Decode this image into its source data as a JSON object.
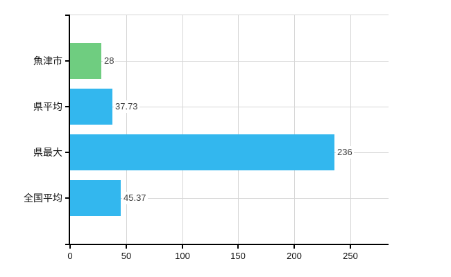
{
  "chart_data": {
    "type": "bar",
    "orientation": "horizontal",
    "title": "",
    "categories": [
      "魚津市",
      "県平均",
      "県最大",
      "全国平均"
    ],
    "values": [
      28,
      37.73,
      236,
      45.37
    ],
    "value_labels": [
      "28",
      "37.73",
      "236",
      "45.37"
    ],
    "series": [
      {
        "name": "",
        "values": [
          28,
          37.73,
          236,
          45.37
        ]
      }
    ],
    "bar_colors": [
      "#6fcd80",
      "#33b7ee",
      "#33b7ee",
      "#33b7ee"
    ],
    "x_ticks": [
      0,
      50,
      100,
      150,
      200,
      250
    ],
    "x_tick_labels": [
      "0",
      "50",
      "100",
      "150",
      "200",
      "250"
    ],
    "xlim": [
      0,
      284
    ],
    "grid": true,
    "legend": false,
    "colors": {
      "background": "#ffffff",
      "grid": "#d6d6d6",
      "axis": "#000000",
      "tick_text": "#111111",
      "value_text": "#3c3c3c",
      "bar_green": "#6fcd80",
      "bar_blue": "#33b7ee"
    }
  }
}
